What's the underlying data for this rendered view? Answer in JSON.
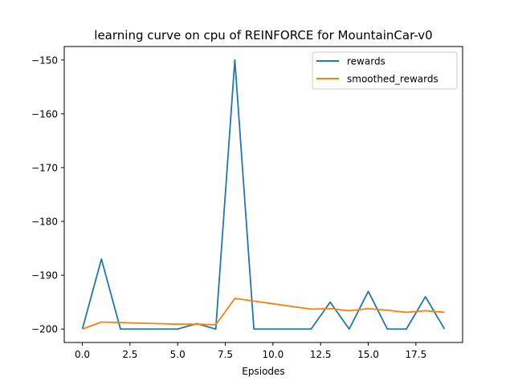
{
  "chart_data": {
    "type": "line",
    "title": "learning curve on cpu of REINFORCE for MountainCar-v0",
    "xlabel": "Epsiodes",
    "ylabel": "",
    "xlim": [
      -0.95,
      19.95
    ],
    "ylim": [
      -202.5,
      -147.5
    ],
    "xticks": [
      0.0,
      2.5,
      5.0,
      7.5,
      10.0,
      12.5,
      15.0,
      17.5
    ],
    "xtick_labels": [
      "0.0",
      "2.5",
      "5.0",
      "7.5",
      "10.0",
      "12.5",
      "15.0",
      "17.5"
    ],
    "yticks": [
      -150,
      -160,
      -170,
      -180,
      -190,
      -200
    ],
    "ytick_labels": [
      "−150",
      "−160",
      "−170",
      "−180",
      "−190",
      "−200"
    ],
    "grid": false,
    "legend_position": "top-right",
    "x": [
      0,
      1,
      2,
      3,
      4,
      5,
      6,
      7,
      8,
      9,
      10,
      11,
      12,
      13,
      14,
      15,
      16,
      17,
      18,
      19
    ],
    "series": [
      {
        "name": "rewards",
        "color": "#1f77b4",
        "values": [
          -200,
          -187,
          -200,
          -200,
          -200,
          -200,
          -199,
          -200,
          -150,
          -200,
          -200,
          -200,
          -200,
          -195,
          -200,
          -193,
          -200,
          -200,
          -194,
          -200
        ]
      },
      {
        "name": "smoothed_rewards",
        "color": "#ff7f0e",
        "values": [
          -200,
          -198.7,
          -198.8,
          -198.9,
          -199.0,
          -199.1,
          -199.1,
          -199.2,
          -194.3,
          -194.8,
          -195.3,
          -195.8,
          -196.3,
          -196.2,
          -196.6,
          -196.2,
          -196.5,
          -196.9,
          -196.6,
          -196.9
        ]
      }
    ]
  }
}
